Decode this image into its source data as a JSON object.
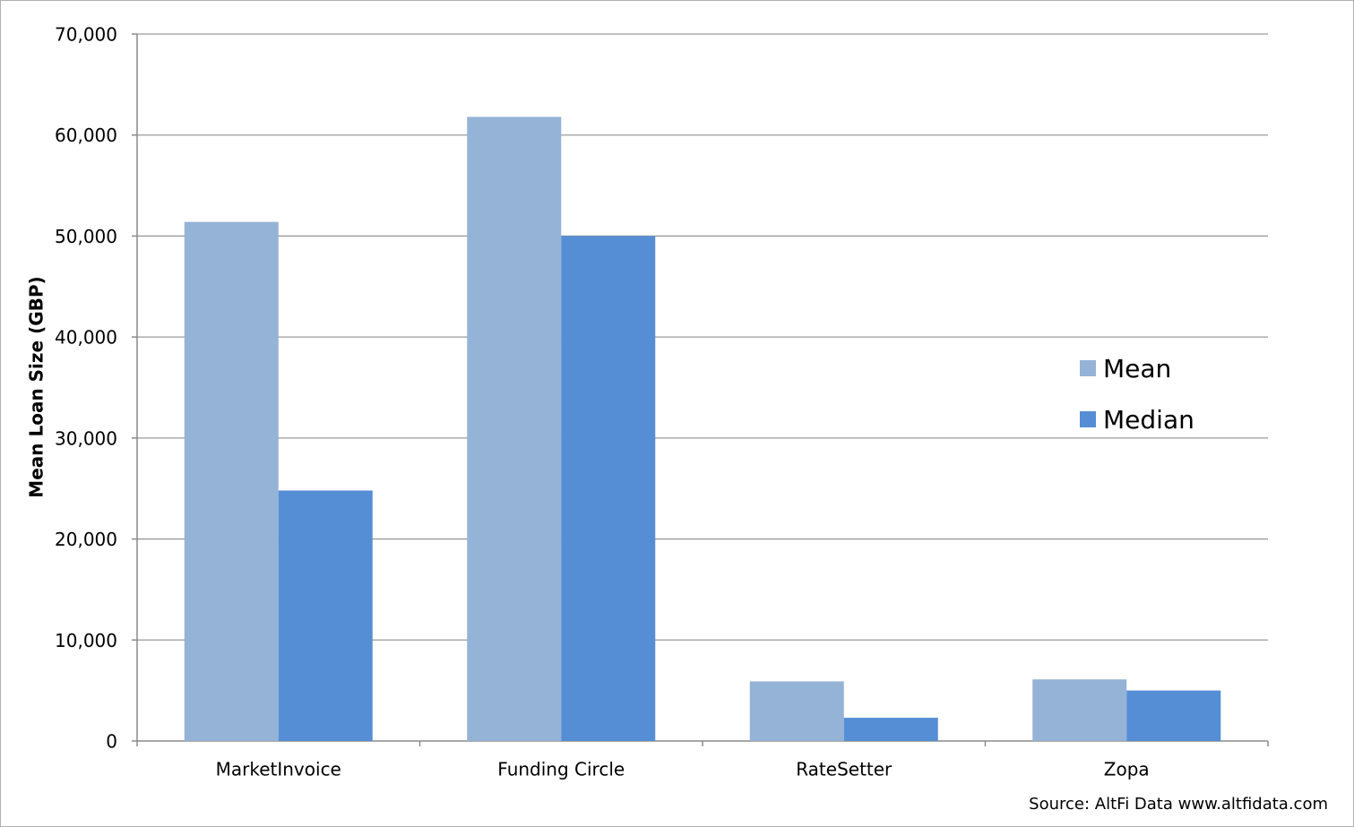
{
  "chart_data": {
    "type": "bar",
    "y_axis_label": "Mean Loan Size (GBP)",
    "source": "Source: AltFi Data www.altfidata.com",
    "categories": [
      "MarketInvoice",
      "Funding Circle",
      "RateSetter",
      "Zopa"
    ],
    "series": [
      {
        "name": "Mean",
        "color": "#95b3d7",
        "values": [
          51400,
          61800,
          5900,
          6100
        ]
      },
      {
        "name": "Median",
        "color": "#558ed5",
        "values": [
          24800,
          50000,
          2300,
          5000
        ]
      }
    ],
    "ylim": [
      0,
      70000
    ],
    "yticks": [
      0,
      {
        "value": 10000,
        "label": "10,000"
      },
      {
        "value": 20000,
        "label": "20,000"
      },
      {
        "value": 30000,
        "label": "30,000"
      },
      {
        "value": 40000,
        "label": "40,000"
      },
      {
        "value": 50000,
        "label": "50,000"
      },
      {
        "value": 60000,
        "label": "60,000"
      },
      {
        "value": 70000,
        "label": "70,000"
      }
    ],
    "grid": true,
    "legend": "right"
  }
}
